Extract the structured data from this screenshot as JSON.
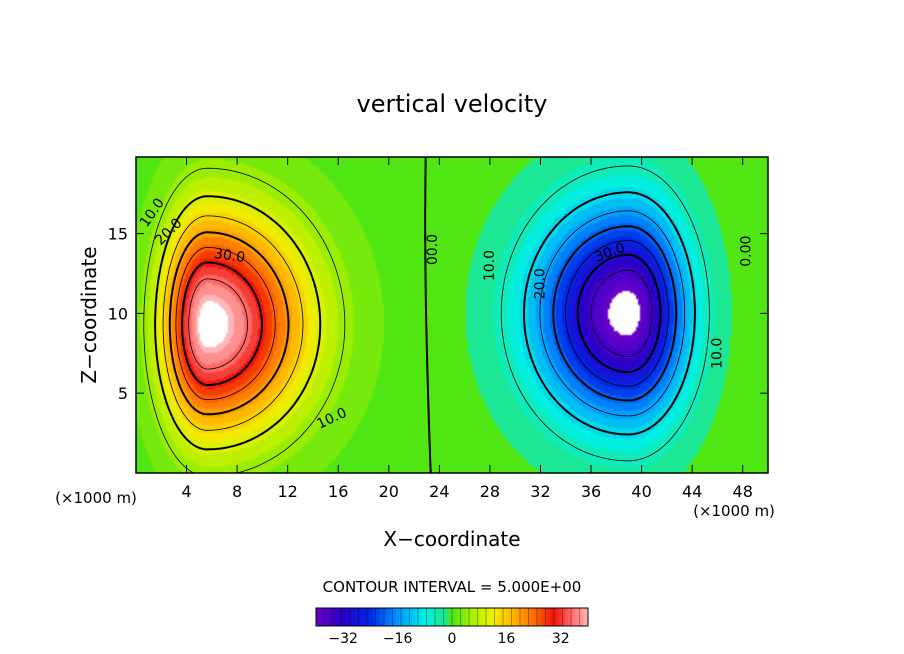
{
  "chart_data": {
    "type": "heatmap",
    "title": "vertical velocity",
    "xlabel": "X−coordinate",
    "ylabel": "Z−coordinate",
    "x_unit_left": "(×1000 m)",
    "x_unit_right": "(×1000 m)",
    "xlim": [
      0,
      50
    ],
    "ylim": [
      0,
      19.8
    ],
    "x_ticks": [
      4,
      8,
      12,
      16,
      20,
      24,
      28,
      32,
      36,
      40,
      44,
      48
    ],
    "y_ticks": [
      5,
      10,
      15
    ],
    "contour_interval_text": "CONTOUR INTERVAL = 5.000E+00",
    "contour_interval": 5,
    "contour_labels": [
      {
        "text": "10.0",
        "x": 1.3,
        "y": 16.3,
        "angle": -55
      },
      {
        "text": "20.0",
        "x": 2.6,
        "y": 15.1,
        "angle": -45
      },
      {
        "text": "30.0",
        "x": 7.4,
        "y": 13.6,
        "angle": 8
      },
      {
        "text": "10.0",
        "x": 15.5,
        "y": 3.4,
        "angle": -25
      },
      {
        "text": "00.0",
        "x": 23.5,
        "y": 14.0,
        "angle": -90
      },
      {
        "text": "10.0",
        "x": 28.0,
        "y": 13.0,
        "angle": -90
      },
      {
        "text": "-20.0",
        "x": 32.0,
        "y": 11.7,
        "angle": -90
      },
      {
        "text": "30.0",
        "x": 37.5,
        "y": 13.8,
        "angle": -20
      },
      {
        "text": "10.0",
        "x": 46.0,
        "y": 7.5,
        "angle": -90
      },
      {
        "text": "0.00",
        "x": 48.3,
        "y": 13.9,
        "angle": -90
      }
    ],
    "colorbar": {
      "range": [
        -40,
        40
      ],
      "ticks": [
        -32,
        -16,
        0,
        16,
        32
      ],
      "tick_labels": [
        "−32",
        "−16",
        "0",
        "16",
        "32"
      ]
    },
    "cells": {
      "positive": {
        "center_x": 5.7,
        "center_z": 9.3,
        "peak": 42
      },
      "negative": {
        "center_x": 38.9,
        "center_z": 10.0,
        "peak": -42
      }
    },
    "colors": {
      "positive_peak": "#ffd4d4",
      "zero": "#55e000",
      "negative_peak": "#7a00c8",
      "missing": "#ffffff"
    }
  }
}
